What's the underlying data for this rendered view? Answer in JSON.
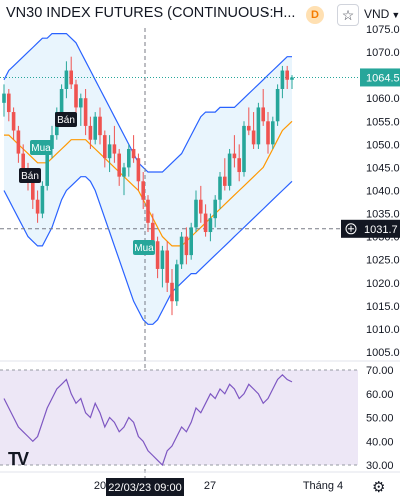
{
  "header": {
    "title": "VN30 INDEX FUTURES (CONTINUOUS: C...",
    "title_suffix": "· H...",
    "delay_badge": "D",
    "favorite_icon": "star-icon",
    "currency": "VND",
    "currency_icon": "chevron-down-icon"
  },
  "colors": {
    "up": "#26a69a",
    "down": "#ef5350",
    "band": "#2962ff",
    "band_fill": "#e3f2fd",
    "mid": "#ff9800",
    "rsi": "#7e57c2",
    "rsi_fill": "#ede7f6"
  },
  "price_axis": {
    "ticks": [
      "1075.0",
      "1070.0",
      "1065.0",
      "1060.0",
      "1055.0",
      "1050.0",
      "1045.0",
      "1040.0",
      "1035.0",
      "1030.0",
      "1025.0",
      "1020.0",
      "1015.0",
      "1010.0",
      "1005.0"
    ],
    "last_price": "1064.5",
    "crosshair_price": "1031.7",
    "crosshair_icon": "plus-circle-icon"
  },
  "rsi_axis": {
    "ticks": [
      "70.00",
      "60.00",
      "50.00",
      "40.00",
      "30.00"
    ]
  },
  "time_axis": {
    "labels": [
      "20",
      "27",
      "Tháng 4"
    ],
    "crosshair_time": "22/03/23  09:00"
  },
  "signals": [
    {
      "label": "Bán",
      "type": "sell"
    },
    {
      "label": "Mua",
      "type": "buy"
    },
    {
      "label": "Bán",
      "type": "sell"
    },
    {
      "label": "Mua",
      "type": "buy"
    }
  ],
  "logo": "TV",
  "settings_icon": "gear-icon",
  "chart_data": {
    "type": "candlestick",
    "ylim": [
      1005,
      1076
    ],
    "rsi_ylim": [
      30,
      70
    ],
    "last_price": 1064.5,
    "crosshair_price": 1031.7,
    "candles": [
      [
        1059,
        1063,
        1056,
        1061
      ],
      [
        1061,
        1062,
        1055,
        1057
      ],
      [
        1057,
        1058,
        1051,
        1053
      ],
      [
        1053,
        1054,
        1046,
        1048
      ],
      [
        1048,
        1050,
        1043,
        1044
      ],
      [
        1044,
        1046,
        1040,
        1042
      ],
      [
        1042,
        1043,
        1036,
        1038
      ],
      [
        1038,
        1040,
        1033,
        1035
      ],
      [
        1035,
        1042,
        1034,
        1041
      ],
      [
        1041,
        1050,
        1040,
        1049
      ],
      [
        1049,
        1054,
        1047,
        1052
      ],
      [
        1052,
        1058,
        1051,
        1057
      ],
      [
        1057,
        1063,
        1055,
        1062
      ],
      [
        1062,
        1068,
        1060,
        1066
      ],
      [
        1066,
        1069,
        1062,
        1063
      ],
      [
        1063,
        1064,
        1056,
        1058
      ],
      [
        1058,
        1061,
        1054,
        1060
      ],
      [
        1060,
        1062,
        1052,
        1054
      ],
      [
        1054,
        1056,
        1049,
        1051
      ],
      [
        1051,
        1057,
        1050,
        1056
      ],
      [
        1056,
        1058,
        1050,
        1052
      ],
      [
        1052,
        1053,
        1045,
        1047
      ],
      [
        1047,
        1052,
        1044,
        1050
      ],
      [
        1050,
        1054,
        1046,
        1048
      ],
      [
        1048,
        1049,
        1041,
        1043
      ],
      [
        1043,
        1046,
        1039,
        1045
      ],
      [
        1045,
        1050,
        1043,
        1049
      ],
      [
        1049,
        1052,
        1046,
        1047
      ],
      [
        1047,
        1048,
        1040,
        1042
      ],
      [
        1042,
        1044,
        1036,
        1038
      ],
      [
        1038,
        1039,
        1031,
        1033
      ],
      [
        1033,
        1035,
        1027,
        1029
      ],
      [
        1029,
        1030,
        1021,
        1023
      ],
      [
        1023,
        1028,
        1019,
        1027
      ],
      [
        1027,
        1029,
        1018,
        1020
      ],
      [
        1020,
        1023,
        1013,
        1016
      ],
      [
        1016,
        1025,
        1015,
        1024
      ],
      [
        1024,
        1031,
        1023,
        1030
      ],
      [
        1030,
        1032,
        1024,
        1026
      ],
      [
        1026,
        1033,
        1025,
        1032
      ],
      [
        1032,
        1040,
        1031,
        1038
      ],
      [
        1038,
        1041,
        1033,
        1035
      ],
      [
        1035,
        1037,
        1030,
        1031
      ],
      [
        1031,
        1035,
        1029,
        1034
      ],
      [
        1034,
        1039,
        1032,
        1038
      ],
      [
        1038,
        1044,
        1036,
        1043
      ],
      [
        1043,
        1047,
        1040,
        1041
      ],
      [
        1041,
        1049,
        1040,
        1048
      ],
      [
        1048,
        1052,
        1045,
        1047
      ],
      [
        1047,
        1050,
        1042,
        1044
      ],
      [
        1044,
        1055,
        1043,
        1054
      ],
      [
        1054,
        1058,
        1052,
        1053
      ],
      [
        1053,
        1057,
        1049,
        1050
      ],
      [
        1050,
        1059,
        1049,
        1058
      ],
      [
        1058,
        1062,
        1054,
        1055
      ],
      [
        1055,
        1057,
        1048,
        1050
      ],
      [
        1050,
        1056,
        1049,
        1055
      ],
      [
        1055,
        1063,
        1054,
        1062
      ],
      [
        1062,
        1067,
        1060,
        1066
      ],
      [
        1066,
        1067,
        1062,
        1064
      ],
      [
        1064,
        1065,
        1062,
        1064.5
      ]
    ],
    "bb_upper": [
      1064,
      1066,
      1067,
      1068,
      1069,
      1070,
      1071,
      1072,
      1073,
      1073,
      1074,
      1074,
      1074,
      1074,
      1073,
      1072,
      1070,
      1068,
      1066,
      1064,
      1062,
      1060,
      1058,
      1056,
      1054,
      1052,
      1050,
      1048,
      1046,
      1045,
      1044,
      1044,
      1044,
      1044,
      1045,
      1046,
      1047,
      1048,
      1050,
      1052,
      1054,
      1056,
      1057,
      1057,
      1057,
      1058,
      1058,
      1058,
      1058,
      1059,
      1060,
      1061,
      1062,
      1063,
      1064,
      1065,
      1066,
      1067,
      1068,
      1069,
      1069
    ],
    "bb_mid": [
      1052,
      1052,
      1051,
      1050,
      1049,
      1048,
      1047,
      1046,
      1046,
      1046,
      1047,
      1048,
      1049,
      1050,
      1051,
      1051,
      1051,
      1051,
      1050,
      1049,
      1048,
      1047,
      1046,
      1045,
      1044,
      1043,
      1042,
      1041,
      1040,
      1038,
      1036,
      1034,
      1032,
      1030,
      1029,
      1028,
      1028,
      1028,
      1029,
      1030,
      1031,
      1032,
      1033,
      1034,
      1035,
      1036,
      1037,
      1038,
      1039,
      1040,
      1041,
      1042,
      1043,
      1044,
      1045,
      1047,
      1049,
      1051,
      1053,
      1054,
      1055
    ],
    "bb_lower": [
      1040,
      1038,
      1036,
      1034,
      1032,
      1030,
      1029,
      1028,
      1028,
      1030,
      1032,
      1035,
      1038,
      1040,
      1041,
      1042,
      1043,
      1043,
      1042,
      1040,
      1037,
      1034,
      1031,
      1028,
      1025,
      1022,
      1019,
      1016,
      1014,
      1012,
      1011,
      1011,
      1012,
      1014,
      1016,
      1018,
      1019,
      1020,
      1021,
      1022,
      1022,
      1023,
      1024,
      1025,
      1026,
      1027,
      1028,
      1029,
      1030,
      1031,
      1032,
      1033,
      1034,
      1035,
      1036,
      1037,
      1038,
      1039,
      1040,
      1041,
      1042
    ],
    "rsi": [
      58,
      54,
      50,
      46,
      44,
      42,
      40,
      42,
      48,
      54,
      58,
      62,
      64,
      66,
      60,
      56,
      58,
      52,
      50,
      56,
      52,
      46,
      50,
      48,
      44,
      46,
      50,
      48,
      42,
      40,
      36,
      34,
      32,
      30,
      36,
      38,
      42,
      46,
      44,
      48,
      54,
      52,
      56,
      60,
      58,
      62,
      60,
      64,
      62,
      58,
      60,
      64,
      62,
      60,
      56,
      58,
      62,
      66,
      68,
      66,
      65
    ]
  }
}
